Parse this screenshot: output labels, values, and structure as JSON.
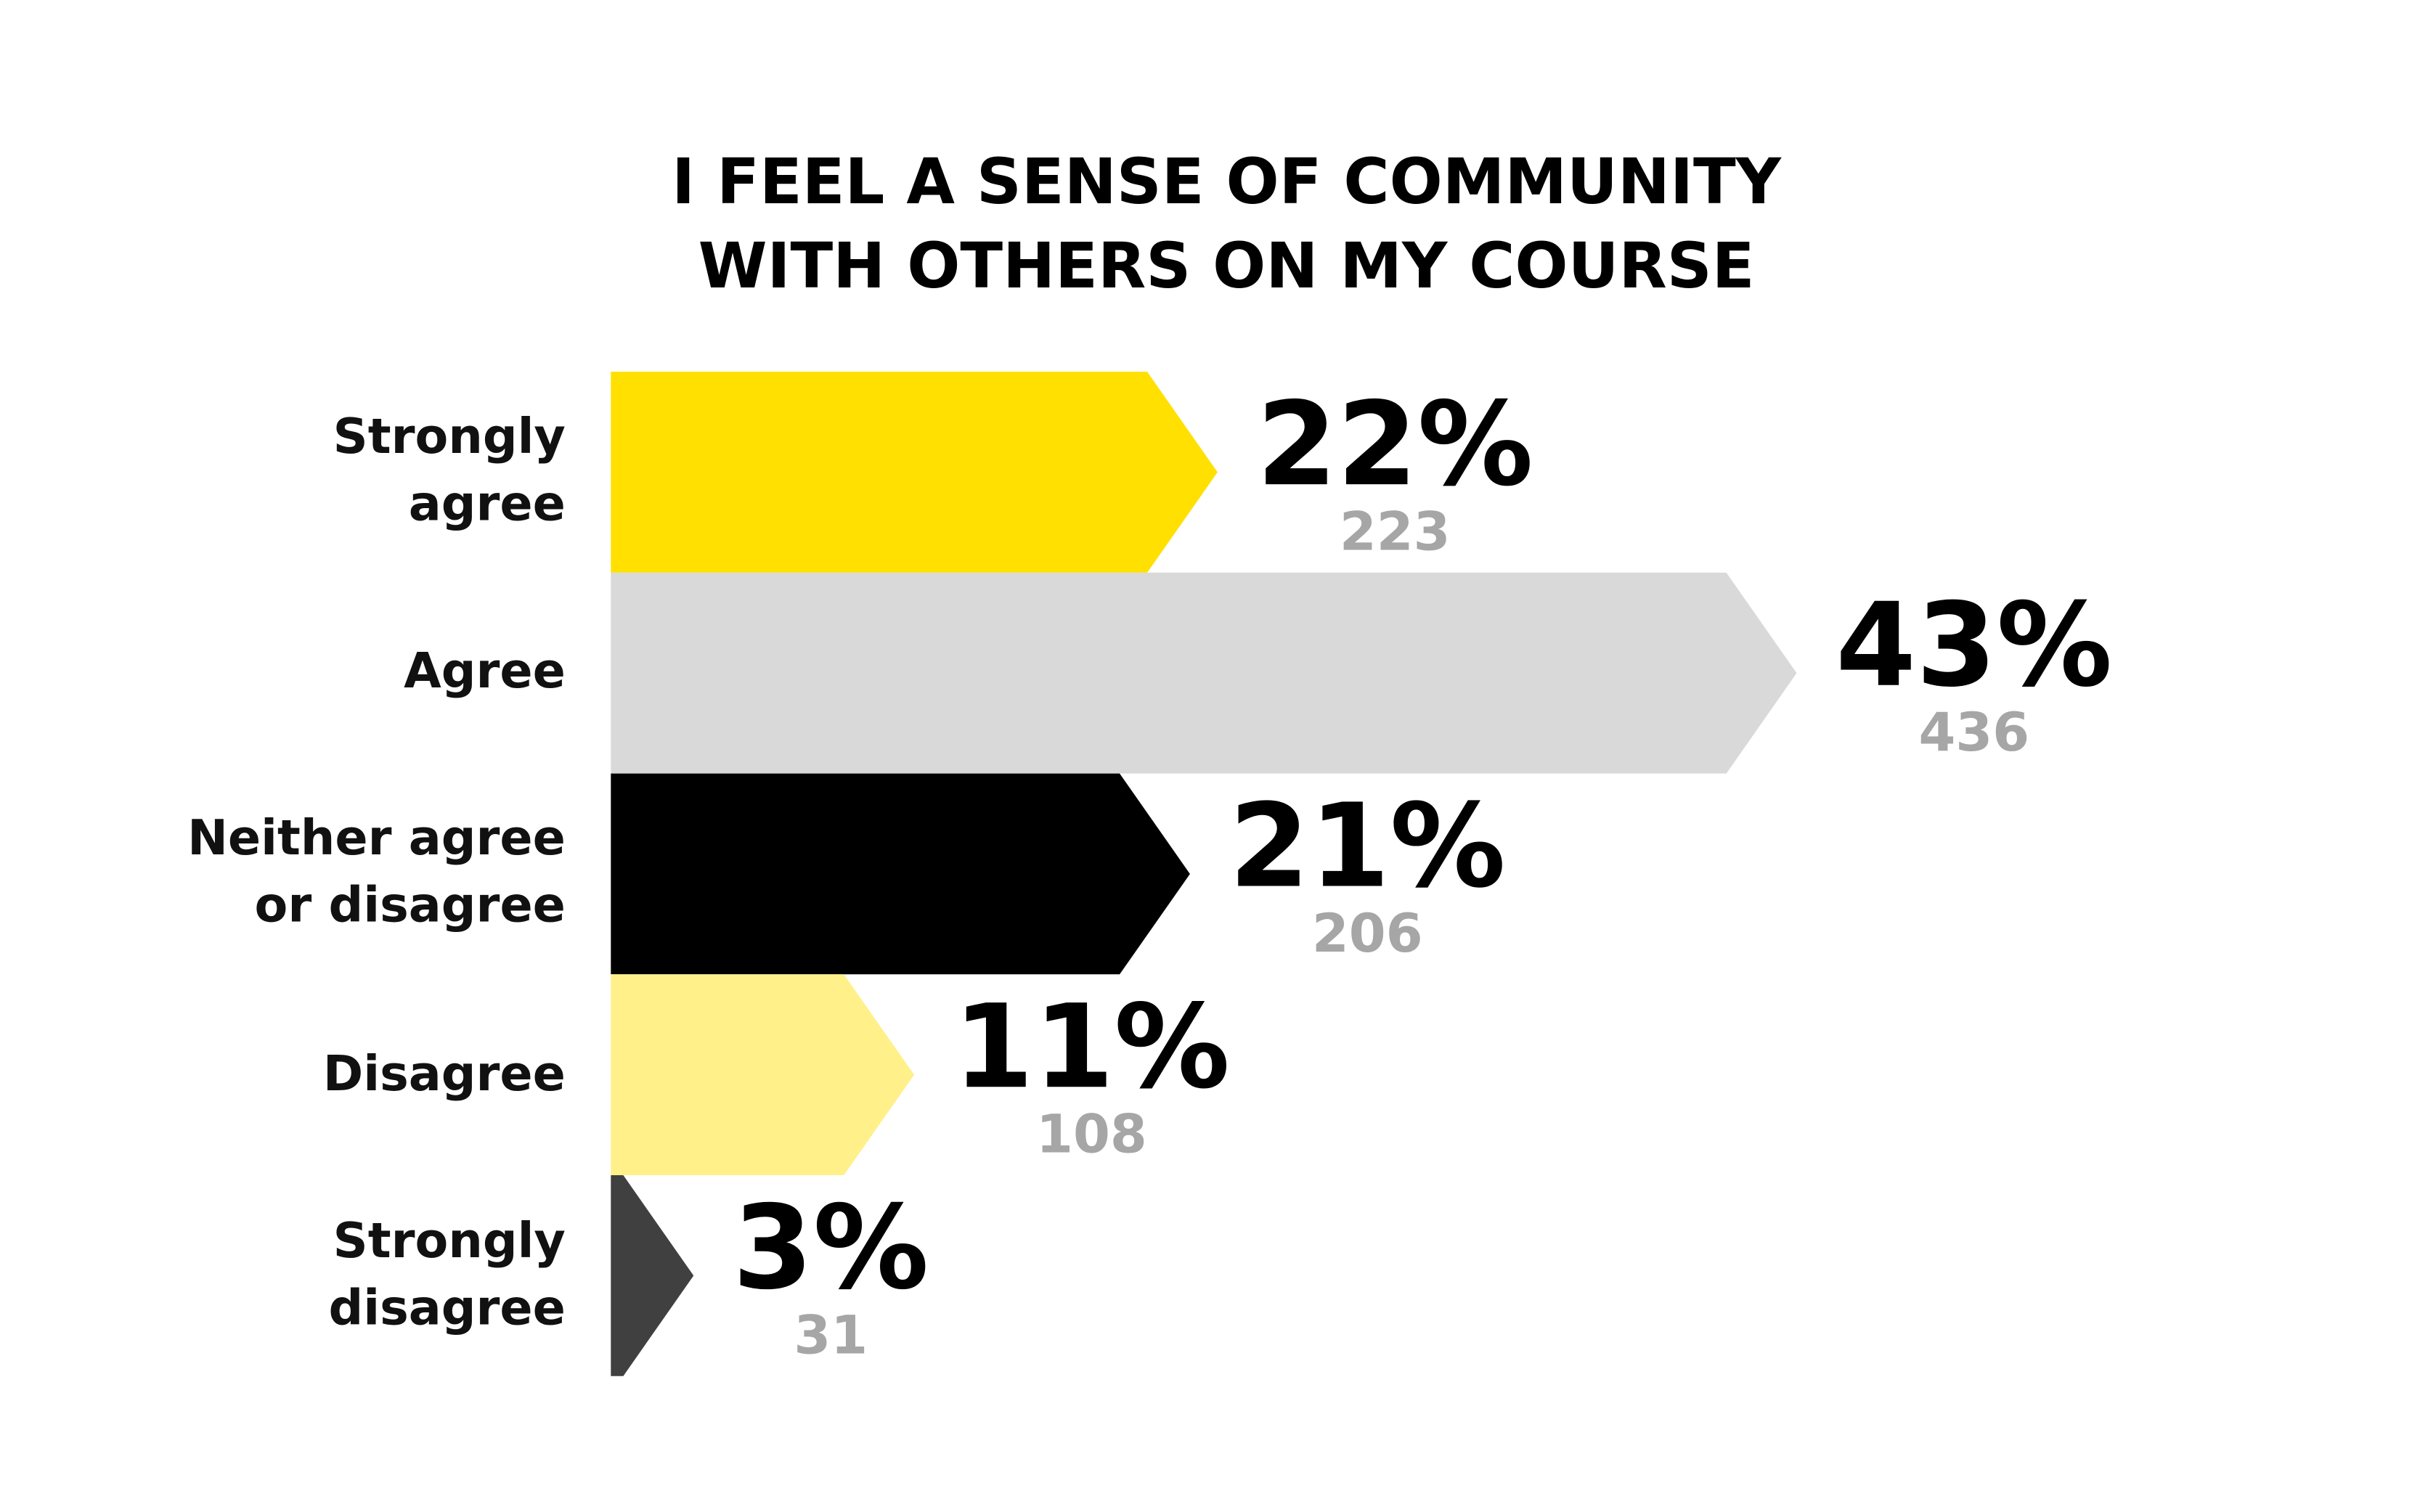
{
  "chart_data": {
    "type": "arrow-bar",
    "title": "I FEEL A SENSE OF COMMUNITY\nWITH OTHERS ON MY COURSE",
    "categories": [
      "Strongly\nagree",
      "Agree",
      "Neither agree\nor disagree",
      "Disagree",
      "Strongly\ndisagree"
    ],
    "values": [
      22,
      43,
      21,
      11,
      3
    ],
    "value_labels": [
      "22%",
      "43%",
      "21%",
      "11%",
      "3%"
    ],
    "counts": [
      223,
      436,
      206,
      108,
      31
    ],
    "colors": [
      "#FFE000",
      "#D9D9D9",
      "#000000",
      "#FFF08A",
      "#404040"
    ]
  }
}
